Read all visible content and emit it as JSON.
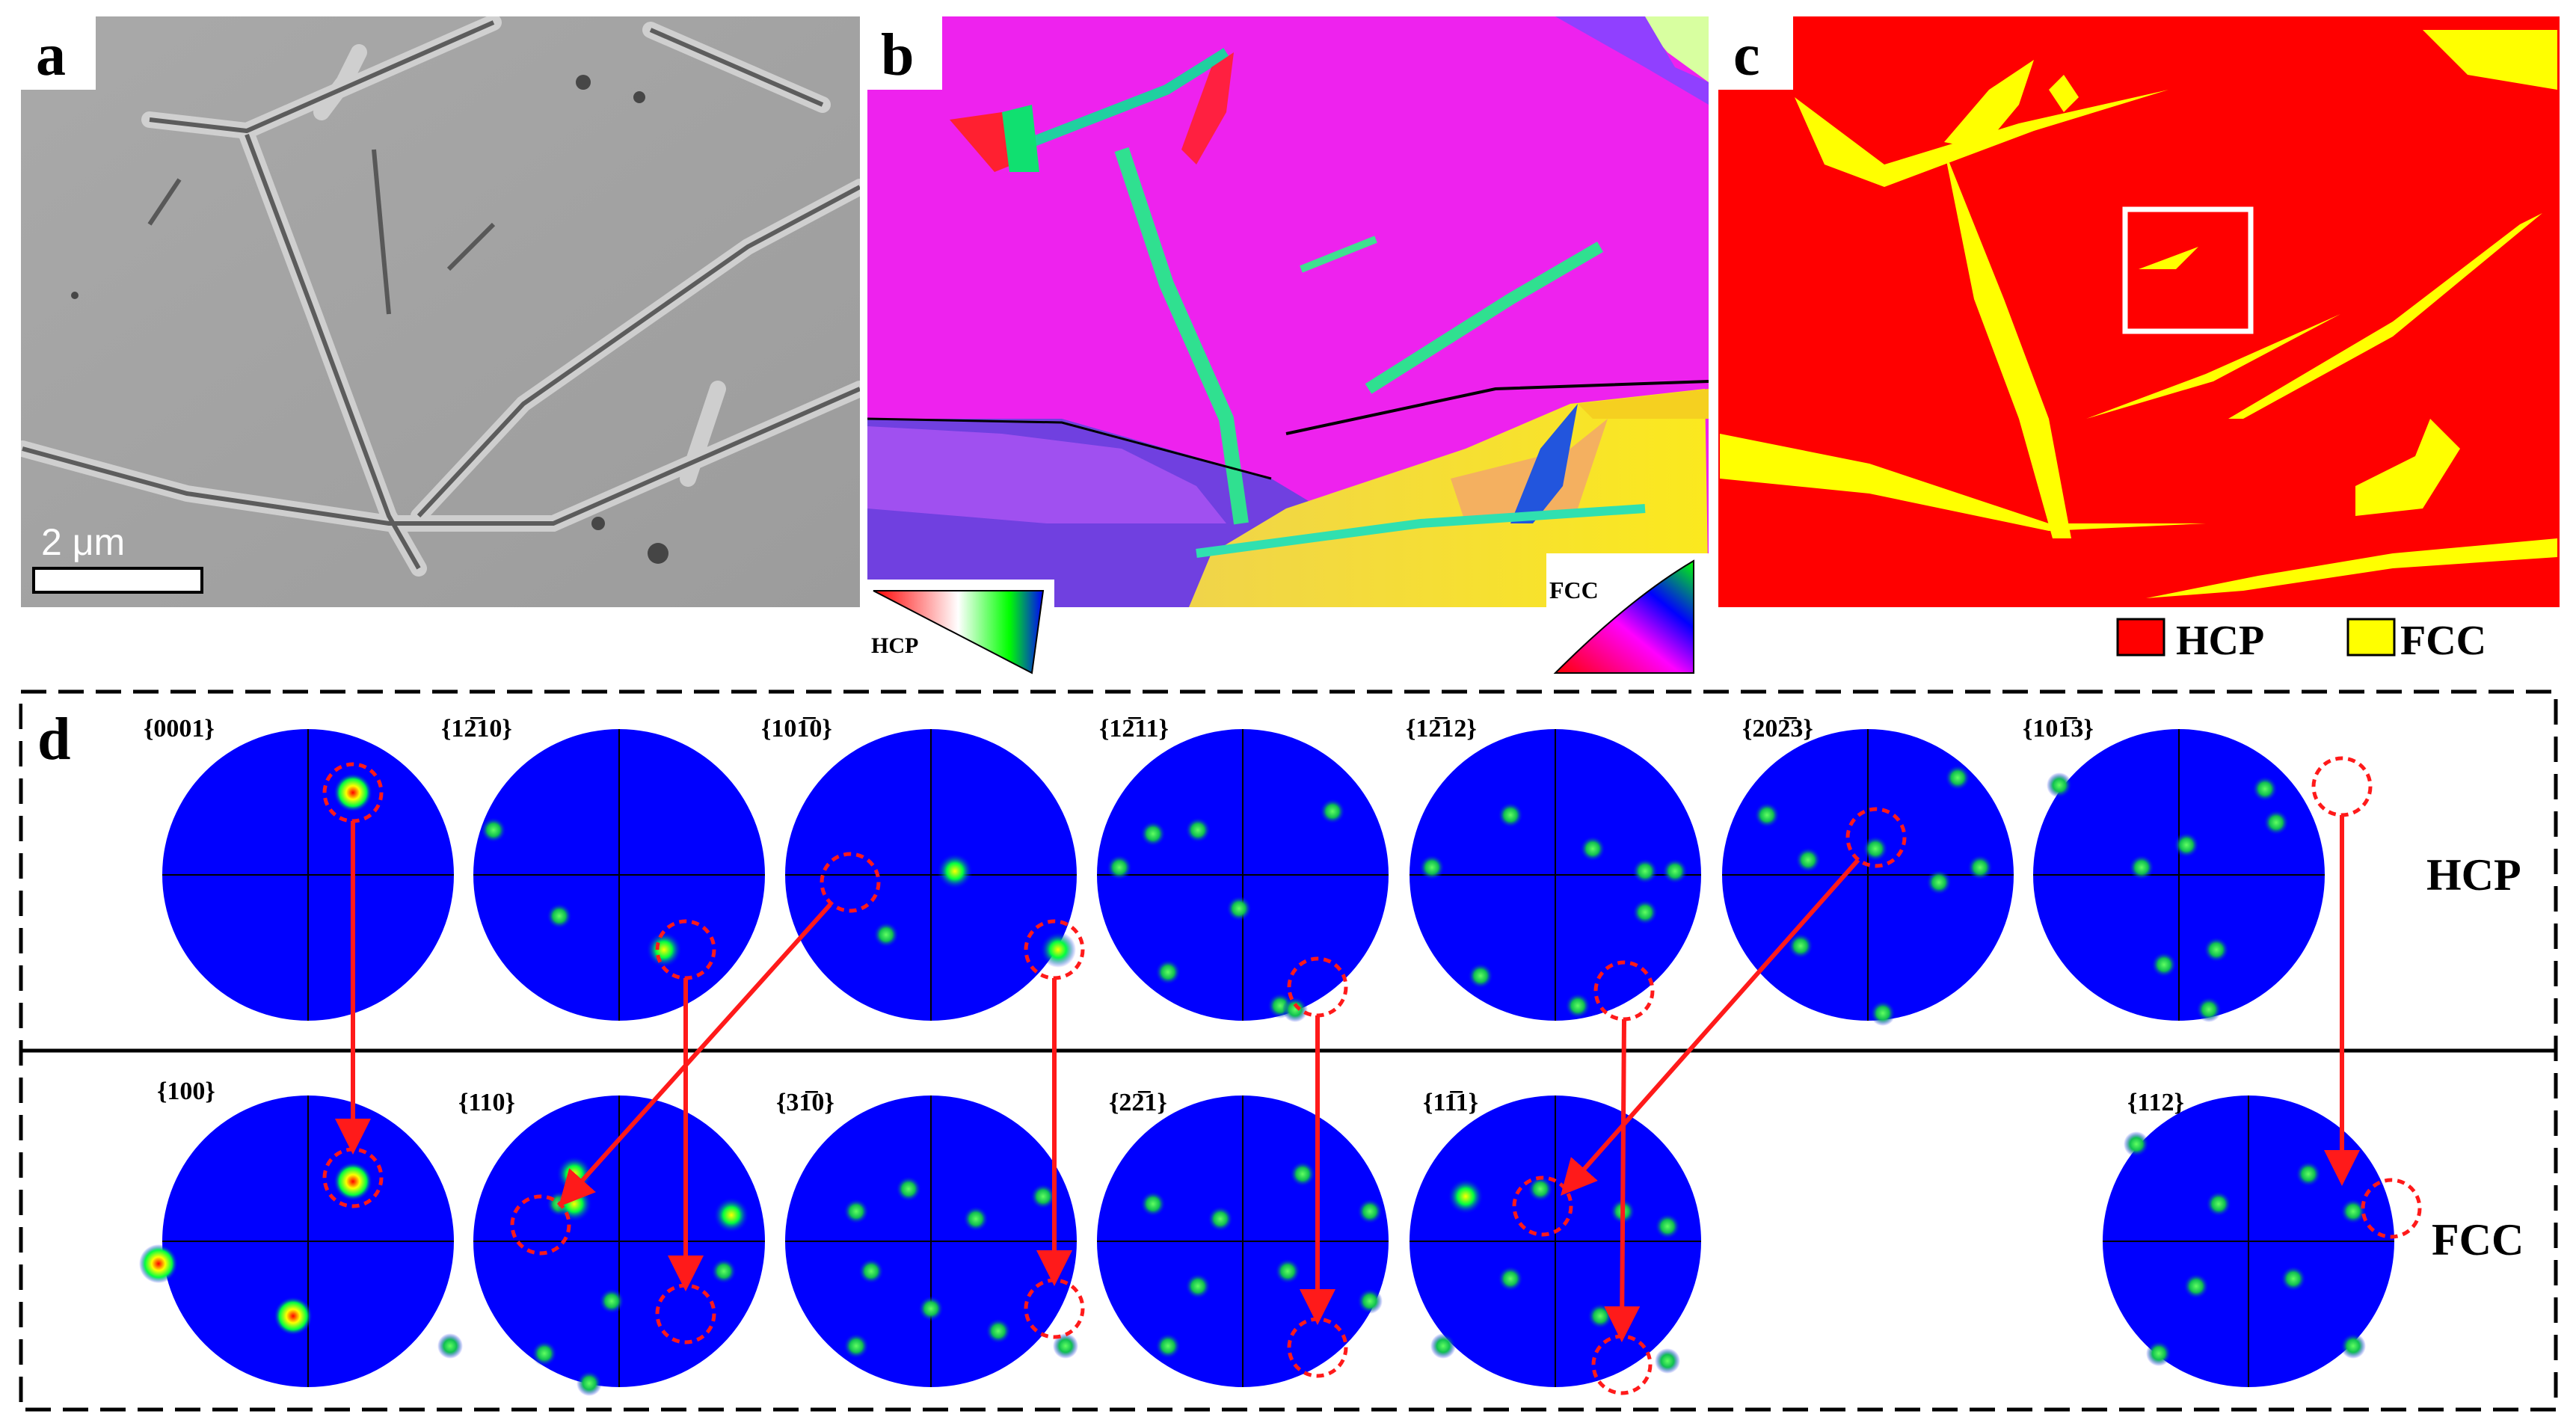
{
  "panels": {
    "a": {
      "label": "a",
      "scalebar": "2 μm"
    },
    "b": {
      "label": "b",
      "legend_hcp": "HCP",
      "legend_fcc": "FCC"
    },
    "c": {
      "label": "c",
      "legend": [
        {
          "name": "HCP",
          "color": "#ff0000"
        },
        {
          "name": "FCC",
          "color": "#ffff00"
        }
      ]
    },
    "d": {
      "label": "d",
      "row_hcp": "HCP",
      "row_fcc": "FCC"
    }
  },
  "pole_figures": {
    "hcp": [
      "{0001}",
      "{12̅10}",
      "{101̅0}",
      "{12̅11}",
      "{12̅12}",
      "{202̅3}",
      "{101̅3}"
    ],
    "fcc": [
      "{100}",
      "{110}",
      "{31̅0}",
      "{22̅1}",
      "{11̅1}",
      "{112}"
    ]
  },
  "colors": {
    "phase_hcp": "#ff0000",
    "phase_fcc": "#ffff00",
    "pole_bg": "#0000ff",
    "arrow": "#ff1a1a"
  }
}
